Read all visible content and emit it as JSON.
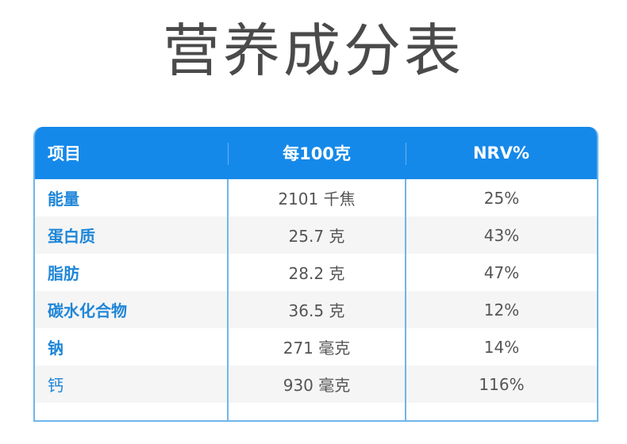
{
  "title": "营养成分表",
  "table": {
    "headers": [
      "项目",
      "每100克",
      "NRV%"
    ],
    "rows": [
      {
        "item": "能量",
        "per100g": "2101 千焦",
        "nrv": "25%"
      },
      {
        "item": "蛋白质",
        "per100g": "25.7 克",
        "nrv": "43%"
      },
      {
        "item": "脂肪",
        "per100g": "28.2 克",
        "nrv": "47%"
      },
      {
        "item": "碳水化合物",
        "per100g": "36.5 克",
        "nrv": "12%"
      },
      {
        "item": "钠",
        "per100g": "271 毫克",
        "nrv": "14%"
      },
      {
        "item": "钙",
        "per100g": "930 毫克",
        "nrv": "116%"
      }
    ]
  },
  "colors": {
    "header_bg": "#1589ea",
    "border": "#6fb6ea",
    "item_text": "#1f86d8",
    "value_text": "#555555",
    "title_text": "#4a4a4a"
  }
}
